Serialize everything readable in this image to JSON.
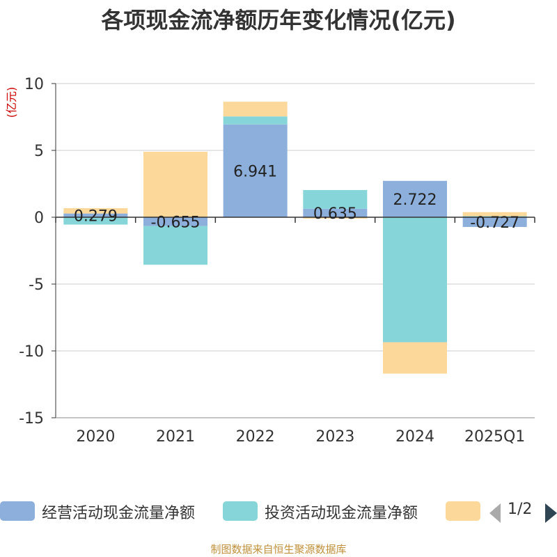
{
  "chart_data": {
    "type": "bar",
    "stacked": true,
    "title": "各项现金流净额历年变化情况(亿元)",
    "ylabel": "(亿元)",
    "ylim": [
      -15,
      10
    ],
    "yticks": [
      10,
      5,
      0,
      -5,
      -10,
      -15
    ],
    "ytick_labels": [
      "10",
      "5",
      "0",
      "-5",
      "-10",
      "-15"
    ],
    "categories": [
      "2020",
      "2021",
      "2022",
      "2023",
      "2024",
      "2025Q1"
    ],
    "series": [
      {
        "name": "经营活动现金流量净额",
        "color": "#8dafdb",
        "values": [
          0.279,
          -0.655,
          6.941,
          0.635,
          2.722,
          -0.727
        ],
        "labels": [
          "0.279",
          "-0.655",
          "6.941",
          "0.635",
          "2.722",
          "-0.727"
        ]
      },
      {
        "name": "投资活动现金流量净额",
        "color": "#86d5d9",
        "values": [
          -0.55,
          -2.9,
          0.6,
          1.4,
          -9.35,
          0.08
        ]
      },
      {
        "name": "",
        "color": "#fdd89b",
        "values": [
          0.4,
          4.9,
          1.1,
          -0.1,
          -2.35,
          0.3
        ]
      }
    ],
    "legend_position": "bottom"
  },
  "legend": {
    "items": [
      {
        "label": "经营活动现金流量净额",
        "color": "#8dafdb"
      },
      {
        "label": "投资活动现金流量净额",
        "color": "#86d5d9"
      },
      {
        "label": "",
        "color": "#fdd89b"
      }
    ],
    "page_text": "1/2"
  },
  "footer": {
    "text": "制图数据来自恒生聚源数据库"
  }
}
